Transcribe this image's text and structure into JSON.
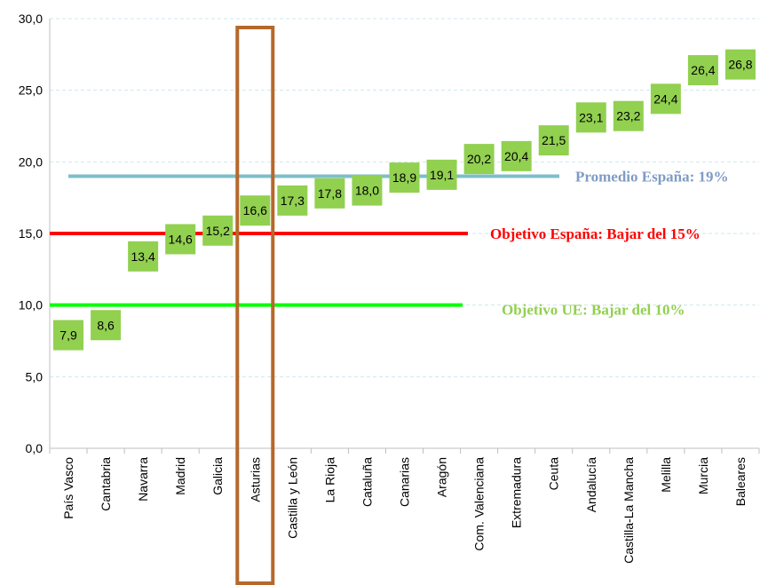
{
  "chart_data": {
    "type": "bar",
    "categories": [
      "País Vasco",
      "Cantabria",
      "Navarra",
      "Madrid",
      "Galicia",
      "Asturias",
      "Castilla y León",
      "La Rioja",
      "Cataluña",
      "Canarias",
      "Aragón",
      "Com. Valenciana",
      "Extremadura",
      "Ceuta",
      "Andalucía",
      "Castilla-La Mancha",
      "Melilla",
      "Murcia",
      "Baleares"
    ],
    "values": [
      7.9,
      8.6,
      13.4,
      14.6,
      15.2,
      16.6,
      17.3,
      17.8,
      18.0,
      18.9,
      19.1,
      20.2,
      20.4,
      21.5,
      23.1,
      23.2,
      24.4,
      26.4,
      26.8
    ],
    "value_labels": [
      "7,9",
      "8,6",
      "13,4",
      "14,6",
      "15,2",
      "16,6",
      "17,3",
      "17,8",
      "18,0",
      "18,9",
      "19,1",
      "20,2",
      "20,4",
      "21,5",
      "23,1",
      "23,2",
      "24,4",
      "26,4",
      "26,8"
    ],
    "ylim": [
      0,
      30
    ],
    "yticks": [
      0,
      5,
      10,
      15,
      20,
      25,
      30
    ],
    "ytick_labels": [
      "0,0",
      "5,0",
      "10,0",
      "15,0",
      "20,0",
      "25,0",
      "30,0"
    ],
    "grid": true,
    "marker_color": "#92d050",
    "highlight_category": "Asturias",
    "highlight_color": "#b5682b",
    "reference_lines": [
      {
        "value": 19,
        "label": "Promedio España: 19%",
        "color": "#7cbfc9",
        "label_color": "#7f9bc4"
      },
      {
        "value": 15,
        "label": "Objetivo España: Bajar del 15%",
        "color": "#ff0000",
        "label_color": "#ff0000"
      },
      {
        "value": 10,
        "label": "Objetivo UE: Bajar del 10%",
        "color": "#00ff00",
        "label_color": "#92d050"
      }
    ]
  }
}
